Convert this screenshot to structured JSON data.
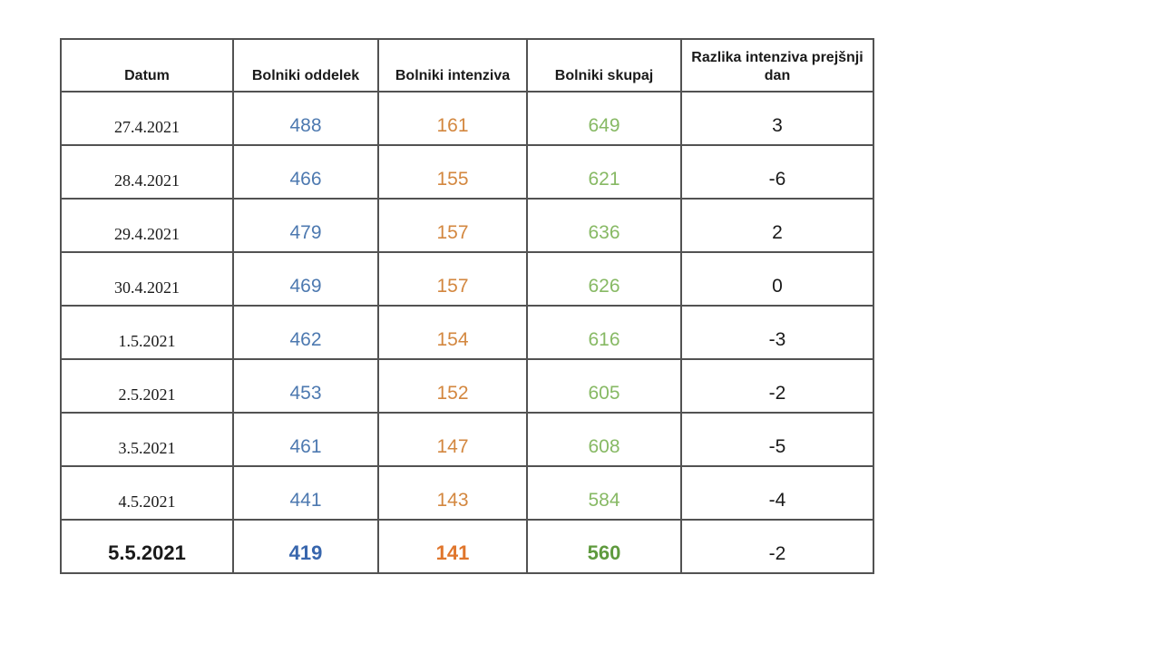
{
  "chart_data": {
    "type": "table",
    "columns": [
      "Datum",
      "Bolniki oddelek",
      "Bolniki intenziva",
      "Bolniki skupaj",
      "Razlika intenziva prejšnji dan"
    ],
    "rows": [
      {
        "cells": [
          "27.4.2021",
          "488",
          "161",
          "649",
          "3"
        ],
        "bold": false
      },
      {
        "cells": [
          "28.4.2021",
          "466",
          "155",
          "621",
          "-6"
        ],
        "bold": false
      },
      {
        "cells": [
          "29.4.2021",
          "479",
          "157",
          "636",
          "2"
        ],
        "bold": false
      },
      {
        "cells": [
          "30.4.2021",
          "469",
          "157",
          "626",
          "0"
        ],
        "bold": false
      },
      {
        "cells": [
          "1.5.2021",
          "462",
          "154",
          "616",
          "-3"
        ],
        "bold": false
      },
      {
        "cells": [
          "2.5.2021",
          "453",
          "152",
          "605",
          "-2"
        ],
        "bold": false
      },
      {
        "cells": [
          "3.5.2021",
          "461",
          "147",
          "608",
          "-5"
        ],
        "bold": false
      },
      {
        "cells": [
          "4.5.2021",
          "441",
          "143",
          "584",
          "-4"
        ],
        "bold": false
      },
      {
        "cells": [
          "5.5.2021",
          "419",
          "141",
          "560",
          "-2"
        ],
        "bold": true
      }
    ],
    "column_colors": [
      "#1a1a1a",
      "#4d79b0",
      "#d3873f",
      "#87b964",
      "#1a1a1a"
    ],
    "bold_row_colors": [
      "#1a1a1a",
      "#3866ad",
      "#e0762c",
      "#5f9a3e",
      "#1a1a1a"
    ],
    "header_text_color": "#1a1a1a",
    "border_color": "#525252"
  }
}
